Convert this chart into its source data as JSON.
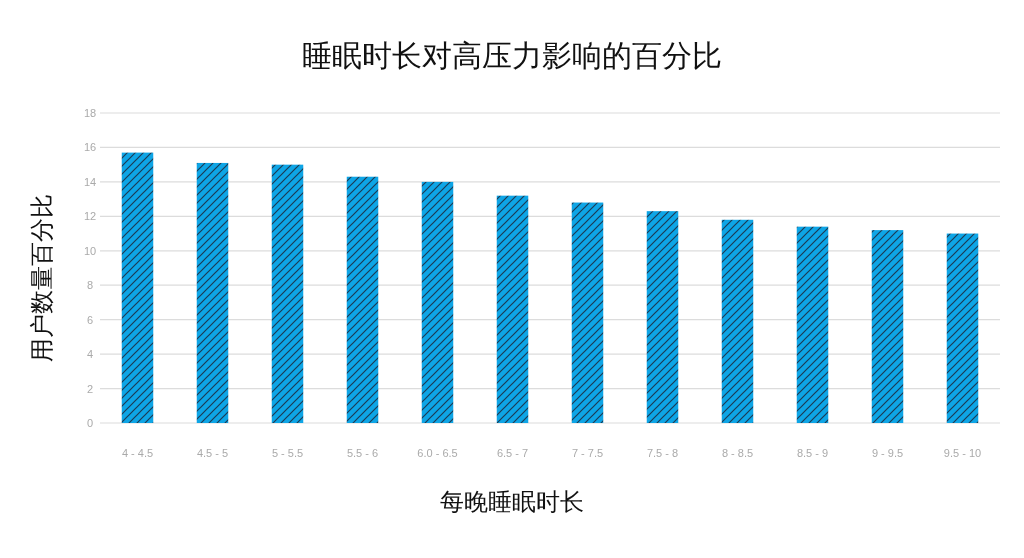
{
  "chart_data": {
    "type": "bar",
    "title": "睡眠时长对高压力影响的百分比",
    "xlabel": "每晚睡眠时长",
    "ylabel": "用户数量百分比",
    "categories": [
      "4 - 4.5",
      "4.5 - 5",
      "5 - 5.5",
      "5.5 - 6",
      "6.0 - 6.5",
      "6.5 - 7",
      "7 - 7.5",
      "7.5 - 8",
      "8 - 8.5",
      "8.5 - 9",
      "9 - 9.5",
      "9.5 - 10"
    ],
    "values": [
      15.7,
      15.1,
      15.0,
      14.3,
      14.0,
      13.2,
      12.8,
      12.3,
      11.8,
      11.4,
      11.2,
      11.0
    ],
    "color": "#0ea5e6",
    "ylim": [
      0,
      18
    ],
    "yticks": [
      0,
      2,
      4,
      6,
      8,
      10,
      12,
      14,
      16,
      18
    ],
    "grid": "y"
  }
}
